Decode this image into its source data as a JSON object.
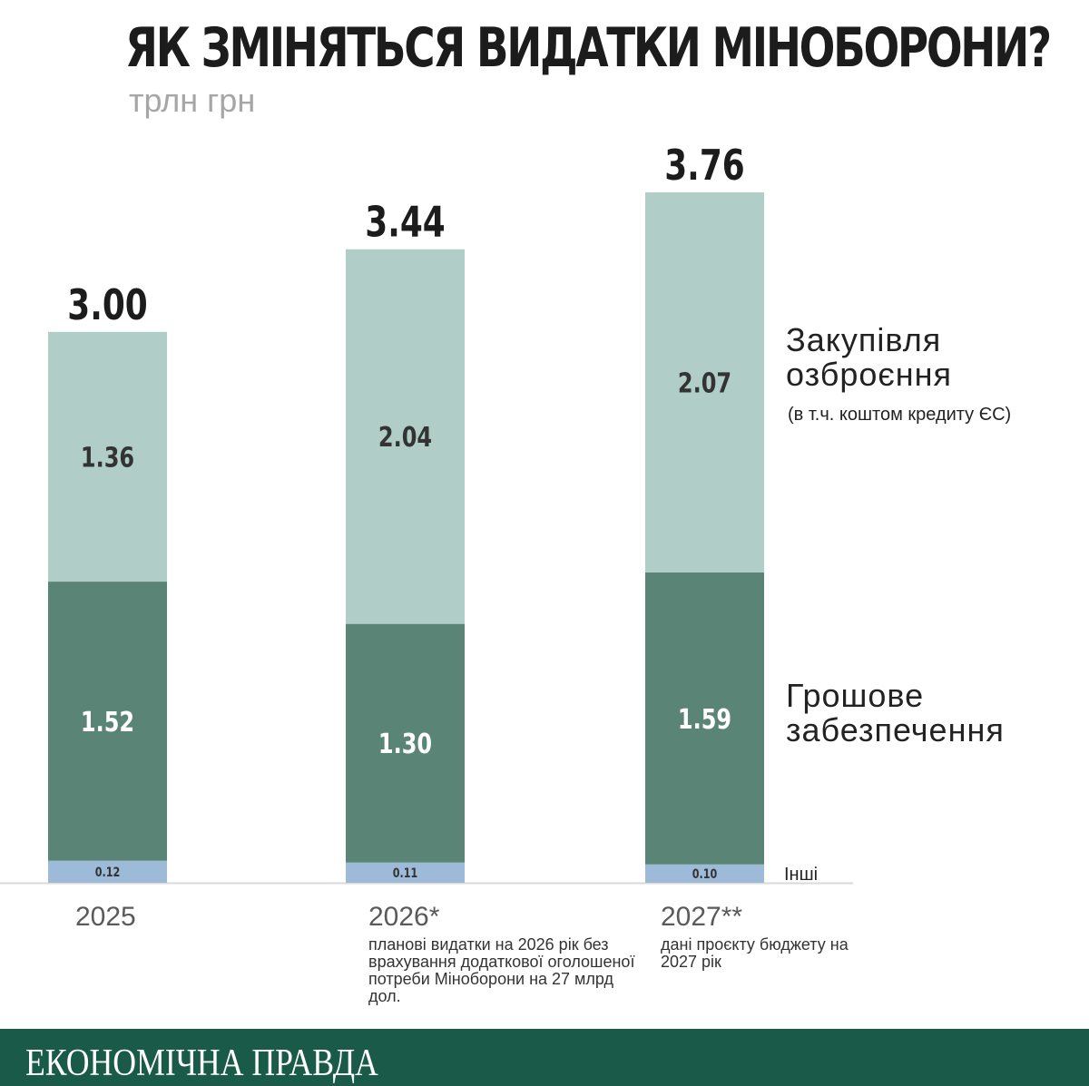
{
  "header": {
    "title": "ЯК ЗМІНЯТЬСЯ ВИДАТКИ МІНОБОРОНИ?",
    "subtitle": "трлн грн"
  },
  "chart_data": {
    "type": "bar",
    "stacked": true,
    "title": "ЯК ЗМІНЯТЬСЯ ВИДАТКИ МІНОБОРОНИ?",
    "subtitle": "трлн грн",
    "categories": [
      "2025",
      "2026*",
      "2027**"
    ],
    "series": [
      {
        "name": "Інші",
        "values": [
          0.12,
          0.11,
          0.1
        ],
        "color": "#9dbbd9",
        "labels": [
          "0.12",
          "0.11",
          "0.10"
        ]
      },
      {
        "name": "Грошове забезпечення",
        "values": [
          1.52,
          1.3,
          1.59
        ],
        "color": "#5a8576",
        "labels": [
          "1.52",
          "1.30",
          "1.59"
        ]
      },
      {
        "name": "Закупівля озброєння",
        "values": [
          1.36,
          2.04,
          2.07
        ],
        "color": "#b1cdc7",
        "labels": [
          "1.36",
          "2.04",
          "2.07"
        ]
      }
    ],
    "totals": [
      "3.00",
      "3.44",
      "3.76"
    ],
    "ylim": [
      0,
      3.76
    ]
  },
  "notes": {
    "y2026": "планові видатки на 2026 рік без врахування додаткової оголошеної потреби Міноборони на 27 млрд дол.",
    "y2027": "дані проєкту бюджету на 2027 рік"
  },
  "legend": {
    "arms_line1": "Закупівля",
    "arms_line2": "озброєння",
    "arms_sub": "(в т.ч. коштом кредиту ЄС)",
    "pay_line1": "Грошове",
    "pay_line2": "забезпечення",
    "other": "Інші"
  },
  "footer": {
    "brand": "ЕКОНОМІЧНА ПРАВДА"
  },
  "colors": {
    "footer_bg": "#1a5a48",
    "axis": "#d9d9d9"
  }
}
